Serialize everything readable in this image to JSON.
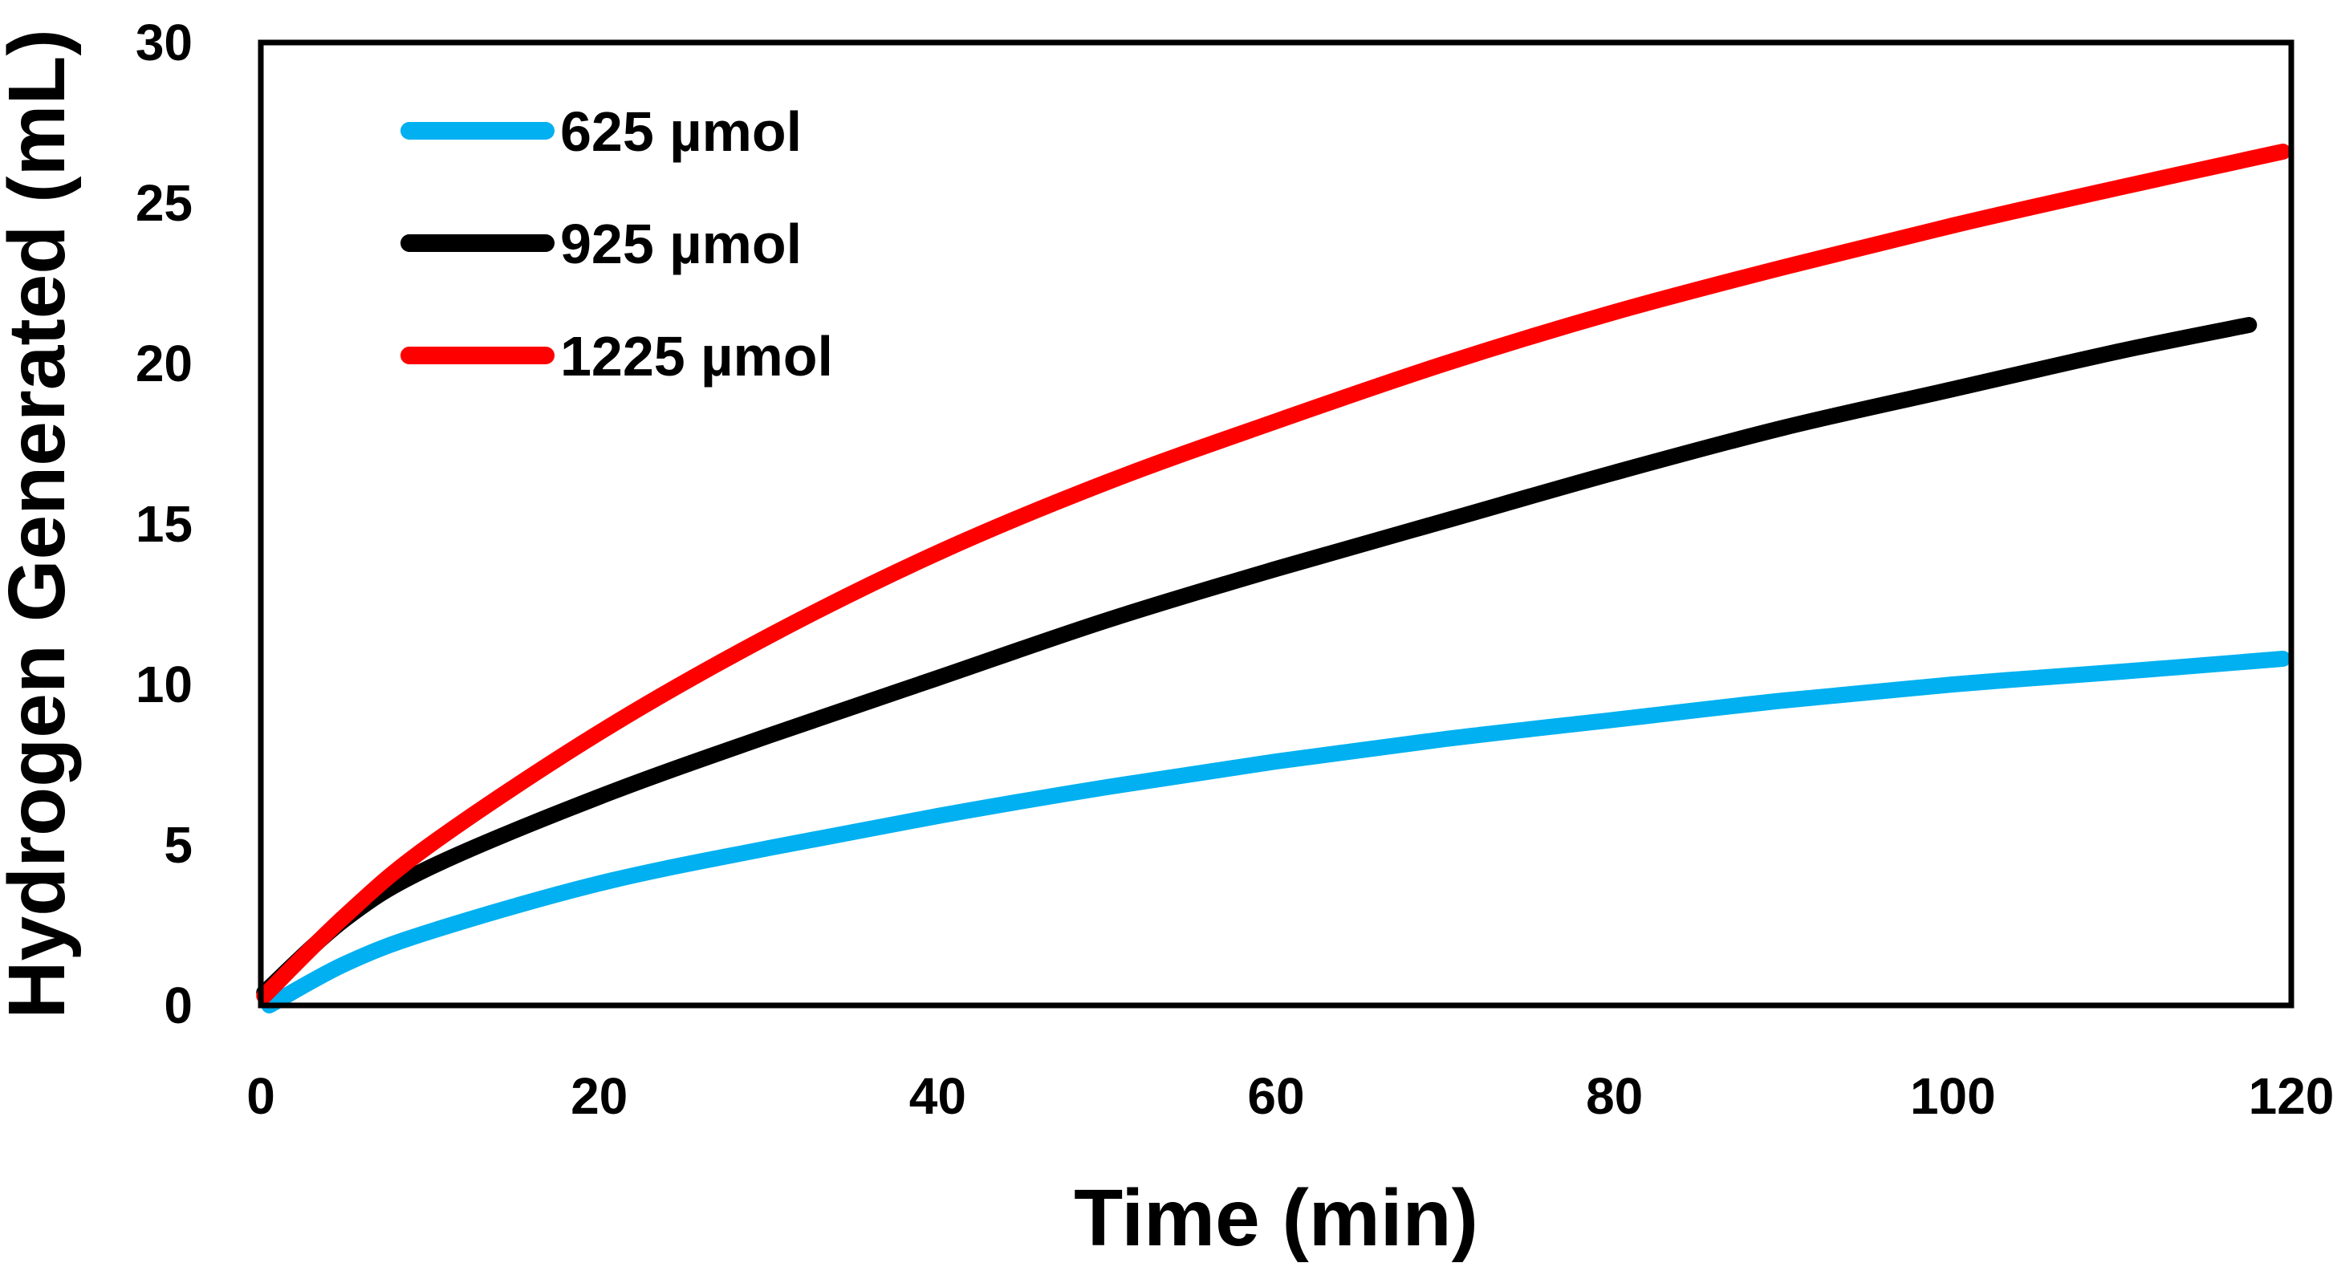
{
  "chart_data": {
    "type": "line",
    "title": "",
    "xlabel": "Time (min)",
    "ylabel": "Hydrogen Generated (mL)",
    "xlim": [
      0,
      120
    ],
    "ylim": [
      0,
      30
    ],
    "x_ticks": [
      0,
      20,
      40,
      60,
      80,
      100,
      120
    ],
    "y_ticks": [
      0,
      5,
      10,
      15,
      20,
      25,
      30
    ],
    "grid": false,
    "legend_position": "top-left",
    "series": [
      {
        "name": "625 µmol",
        "color": "#00B0F0",
        "points": [
          [
            0.5,
            0
          ],
          [
            5,
            1.3
          ],
          [
            10,
            2.3
          ],
          [
            20,
            3.8
          ],
          [
            30,
            4.9
          ],
          [
            40,
            5.9
          ],
          [
            50,
            6.8
          ],
          [
            60,
            7.6
          ],
          [
            70,
            8.3
          ],
          [
            80,
            8.9
          ],
          [
            90,
            9.5
          ],
          [
            100,
            10.0
          ],
          [
            110,
            10.4
          ],
          [
            119.5,
            10.8
          ]
        ]
      },
      {
        "name": "925 µmol",
        "color": "#000000",
        "points": [
          [
            0.2,
            0.4
          ],
          [
            5,
            2.7
          ],
          [
            10,
            4.3
          ],
          [
            20,
            6.5
          ],
          [
            30,
            8.4
          ],
          [
            40,
            10.2
          ],
          [
            50,
            12.0
          ],
          [
            60,
            13.6
          ],
          [
            70,
            15.1
          ],
          [
            80,
            16.6
          ],
          [
            90,
            18.0
          ],
          [
            100,
            19.2
          ],
          [
            110,
            20.4
          ],
          [
            117.5,
            21.2
          ]
        ]
      },
      {
        "name": "1225 µmol",
        "color": "#FF0000",
        "points": [
          [
            0.2,
            0.3
          ],
          [
            5,
            2.8
          ],
          [
            10,
            5.0
          ],
          [
            20,
            8.5
          ],
          [
            30,
            11.5
          ],
          [
            40,
            14.1
          ],
          [
            50,
            16.3
          ],
          [
            60,
            18.2
          ],
          [
            70,
            20.0
          ],
          [
            80,
            21.6
          ],
          [
            90,
            23.0
          ],
          [
            100,
            24.3
          ],
          [
            110,
            25.5
          ],
          [
            119.5,
            26.6
          ]
        ]
      }
    ]
  }
}
